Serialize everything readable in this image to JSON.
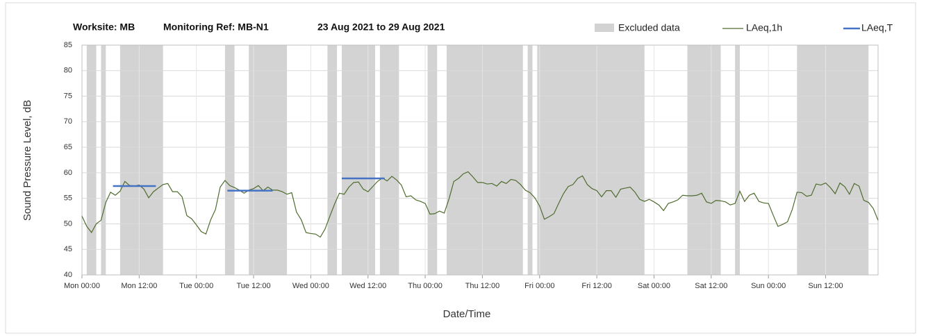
{
  "chart_data": {
    "type": "line",
    "title_parts": [
      "Worksite: MB",
      "Monitoring Ref: MB-N1",
      "23 Aug 2021 to 29 Aug 2021"
    ],
    "x_label": "Date/Time",
    "y_label": "Sound Pressure Level, dB",
    "xlim": [
      0,
      167
    ],
    "ylim": [
      40,
      85
    ],
    "yticks": [
      40,
      45,
      50,
      55,
      60,
      65,
      70,
      75,
      80,
      85
    ],
    "xticks": [
      {
        "value": 0,
        "label": "Mon 00:00"
      },
      {
        "value": 12,
        "label": "Mon 12:00"
      },
      {
        "value": 24,
        "label": "Tue 00:00"
      },
      {
        "value": 36,
        "label": "Tue 12:00"
      },
      {
        "value": 48,
        "label": "Wed 00:00"
      },
      {
        "value": 60,
        "label": "Wed 12:00"
      },
      {
        "value": 72,
        "label": "Thu 00:00"
      },
      {
        "value": 84,
        "label": "Thu 12:00"
      },
      {
        "value": 96,
        "label": "Fri 00:00"
      },
      {
        "value": 108,
        "label": "Fri 12:00"
      },
      {
        "value": 120,
        "label": "Sat 00:00"
      },
      {
        "value": 132,
        "label": "Sat 12:00"
      },
      {
        "value": 144,
        "label": "Sun 00:00"
      },
      {
        "value": 156,
        "label": "Sun 12:00"
      }
    ],
    "grid": true,
    "legend": "top-right",
    "bands": {
      "name": "Excluded data",
      "color": "#d3d3d3",
      "ranges": [
        [
          1,
          3
        ],
        [
          4,
          5
        ],
        [
          8,
          17
        ],
        [
          30,
          32
        ],
        [
          35,
          43
        ],
        [
          51.5,
          53.5
        ],
        [
          54.5,
          61.5
        ],
        [
          62.5,
          66.5
        ],
        [
          72.5,
          74.5
        ],
        [
          76.5,
          92.5
        ],
        [
          93.5,
          94.5
        ],
        [
          95.5,
          118
        ],
        [
          127,
          134
        ],
        [
          137,
          138
        ],
        [
          150,
          165
        ]
      ]
    },
    "segments": {
      "name": "LAeq,T",
      "color": "#4472c4",
      "ranges": [
        [
          6.5,
          15.5
        ],
        [
          30.5,
          40
        ],
        [
          54.5,
          63.5
        ]
      ],
      "values": [
        57.4,
        56.5,
        58.9
      ]
    },
    "series": [
      {
        "name": "LAeq,1h",
        "color": "#4f6b2d",
        "x": [
          0,
          1,
          2,
          3,
          4,
          5,
          6,
          7,
          8,
          9,
          10,
          11,
          12,
          13,
          14,
          15,
          16,
          17,
          18,
          19,
          20,
          21,
          22,
          23,
          24,
          25,
          26,
          27,
          28,
          29,
          30,
          31,
          32,
          33,
          34,
          35,
          36,
          37,
          38,
          39,
          40,
          41,
          42,
          43,
          44,
          45,
          46,
          47,
          48,
          49,
          50,
          51,
          52,
          53,
          54,
          55,
          56,
          57,
          58,
          59,
          60,
          61,
          62,
          63,
          64,
          65,
          66,
          67,
          68,
          69,
          70,
          71,
          72,
          73,
          74,
          75,
          76,
          77,
          78,
          79,
          80,
          81,
          82,
          83,
          84,
          85,
          86,
          87,
          88,
          89,
          90,
          91,
          92,
          93,
          94,
          95,
          96,
          97,
          98,
          99,
          100,
          101,
          102,
          103,
          104,
          105,
          106,
          107,
          108,
          109,
          110,
          111,
          112,
          113,
          114,
          115,
          116,
          117,
          118,
          119,
          120,
          121,
          122,
          123,
          124,
          125,
          126,
          127,
          128,
          129,
          130,
          131,
          132,
          133,
          134,
          135,
          136,
          137,
          138,
          139,
          140,
          141,
          142,
          143,
          144,
          145,
          146,
          147,
          148,
          149,
          150,
          151,
          152,
          153,
          154,
          155,
          156,
          157,
          158,
          159,
          160,
          161,
          162,
          163,
          164,
          165,
          166,
          167
        ],
        "values": [
          51.5,
          49.5,
          48.3,
          50,
          50.7,
          54.2,
          56.2,
          55.6,
          56.4,
          58.3,
          57.5,
          57.4,
          57.6,
          56.8,
          55.1,
          56.3,
          57,
          57.7,
          57.9,
          56.3,
          56.3,
          55.3,
          51.6,
          51,
          49.8,
          48.5,
          48,
          50.8,
          52.8,
          57.2,
          58.5,
          57.5,
          57.1,
          56.6,
          56,
          56.6,
          56.9,
          57.5,
          56.5,
          57.2,
          56.6,
          56.6,
          56.3,
          55.8,
          56.1,
          52.3,
          50.8,
          48.3,
          48.1,
          48,
          47.4,
          49,
          51.5,
          53.9,
          56,
          55.8,
          57.2,
          58.1,
          58.2,
          56.8,
          56.3,
          57.3,
          58.3,
          59,
          58.4,
          59.3,
          58.6,
          57.6,
          55.3,
          55.5,
          54.7,
          54.4,
          54,
          51.9,
          52,
          52.5,
          52.1,
          54.9,
          58.3,
          58.9,
          59.8,
          60.2,
          59.2,
          58.1,
          58.1,
          57.8,
          57.9,
          57.4,
          58.3,
          57.9,
          58.7,
          58.5,
          57.7,
          56.6,
          56.1,
          55.1,
          53.5,
          50.9,
          51.4,
          52,
          54,
          55.9,
          57.3,
          57.7,
          58.9,
          59.4,
          57.7,
          56.9,
          56.5,
          55.3,
          56.5,
          56.5,
          55.2,
          56.8,
          57,
          57.2,
          56.2,
          54.8,
          54.4,
          54.8,
          54.3,
          53.7,
          52.6,
          54,
          54.3,
          54.7,
          55.6,
          55.5,
          55.5,
          55.6,
          56,
          54.3,
          54,
          54.6,
          54.5,
          54.3,
          53.7,
          54,
          56.4,
          54.4,
          55.6,
          56,
          54.4,
          54.1,
          54,
          51.7,
          49.5,
          49.9,
          50.4,
          52.8,
          56.2,
          56.1,
          55.4,
          55.6,
          57.8,
          57.6,
          58,
          57.1,
          55.9,
          58,
          57.3,
          55.8,
          57.9,
          57.4,
          54.6,
          54.2,
          53,
          50.7
        ]
      }
    ]
  }
}
